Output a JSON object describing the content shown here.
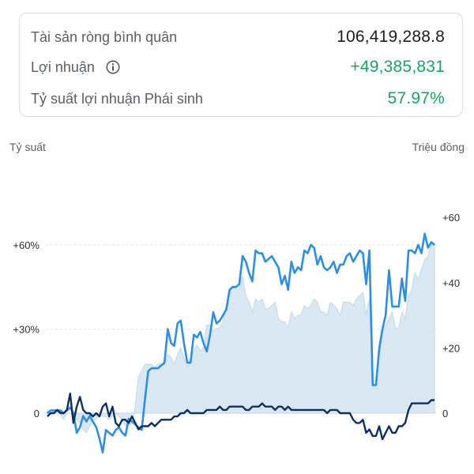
{
  "summary": {
    "row1": {
      "label": "Tài sản ròng bình quân",
      "value": "106,419,288.8"
    },
    "row2": {
      "label": "Lợi nhuận",
      "value": "+49,385,831"
    },
    "row3": {
      "label": "Tỷ suất lợi nhuận Phái sinh",
      "value": "57.97%"
    }
  },
  "colors": {
    "green": "#1aa260",
    "return_line": "#2e8ee3",
    "profit_line": "#0d2f63",
    "area_fill": "#d8e7f3"
  },
  "chart_data": {
    "type": "line",
    "title": "",
    "left_axis_title": "Tỷ suất",
    "right_axis_title": "Triệu đồng",
    "left_ticks": [
      "0",
      "+30%",
      "+60%"
    ],
    "left_tick_values": [
      0,
      30,
      60
    ],
    "right_ticks": [
      "0",
      "+20",
      "+40",
      "+60"
    ],
    "right_tick_values": [
      0,
      20,
      40,
      60
    ],
    "ylim_left": [
      -10,
      75
    ],
    "ylim_right": [
      -14.5,
      73
    ],
    "x_points": 120,
    "series": [
      {
        "axis": "left",
        "style": "line",
        "values": [
          0,
          1,
          1,
          1,
          1,
          0,
          1,
          2,
          0,
          -7,
          -5,
          -1,
          -3,
          -1,
          -3,
          -5,
          -9,
          -14,
          -6,
          -7,
          -8,
          -6,
          -5,
          -7,
          -8,
          -2,
          -3,
          -4,
          -5,
          -6,
          5,
          15,
          16,
          16,
          16,
          17,
          18,
          30,
          25,
          24,
          32,
          33,
          25,
          18,
          18,
          28,
          27,
          29,
          25,
          22,
          28,
          36,
          32,
          33,
          35,
          37,
          44,
          45,
          45,
          46,
          56,
          54,
          50,
          47,
          58,
          57,
          57,
          54,
          55,
          56,
          54,
          52,
          46,
          49,
          44,
          54,
          50,
          52,
          51,
          58,
          57,
          60,
          59,
          53,
          56,
          52,
          51,
          52,
          54,
          50,
          53,
          53,
          56,
          57,
          54,
          56,
          58,
          57,
          46,
          58,
          10,
          10,
          23,
          30,
          35,
          51,
          38,
          38,
          38,
          48,
          40,
          58,
          58,
          57,
          60,
          57,
          64,
          59,
          61,
          60
        ]
      },
      {
        "axis": "right",
        "style": "area",
        "values": [
          1,
          0,
          1,
          1,
          0,
          -2,
          0,
          0,
          -1,
          -2,
          -3,
          -5,
          -6,
          -4,
          -2,
          -2,
          0,
          -1,
          -1,
          -2,
          -1,
          0,
          -1,
          -2,
          -4,
          -4,
          -3,
          2,
          11,
          13,
          15,
          15,
          15,
          14,
          15,
          15,
          15,
          18,
          17,
          15,
          18,
          20,
          17,
          14,
          17,
          19,
          21,
          19,
          20,
          27,
          27,
          25,
          26,
          26,
          28,
          33,
          38,
          39,
          38,
          38,
          42,
          36,
          34,
          31,
          35,
          34,
          35,
          32,
          32,
          33,
          34,
          29,
          28,
          28,
          26,
          31,
          29,
          30,
          30,
          33,
          32,
          33,
          35,
          34,
          31,
          31,
          30,
          34,
          33,
          32,
          30,
          34,
          34,
          34,
          33,
          35,
          36,
          37,
          30,
          35,
          9,
          9,
          17,
          25,
          27,
          29,
          31,
          26,
          26,
          31,
          29,
          36,
          38,
          43,
          41,
          44,
          47,
          48,
          52,
          51
        ]
      },
      {
        "axis": "right",
        "style": "line",
        "values": [
          -1,
          0,
          0,
          1,
          0,
          0,
          1,
          6,
          -3,
          2,
          5,
          1,
          0,
          0,
          -1,
          0,
          -1,
          2,
          3,
          -1,
          2,
          -3,
          -4,
          -2,
          -2,
          -3,
          -1,
          -3,
          -5,
          -4,
          -4,
          -4,
          -3,
          -4,
          -3,
          -2,
          -2,
          -2,
          -2,
          -1,
          -1,
          0,
          0,
          1,
          0,
          0,
          0,
          0,
          0,
          1,
          1,
          1,
          1,
          2,
          1,
          1,
          2,
          2,
          2,
          2,
          2,
          1,
          1,
          2,
          2,
          2,
          3,
          2,
          2,
          2,
          1,
          2,
          2,
          1,
          2,
          1,
          1,
          1,
          1,
          1,
          1,
          1,
          1,
          1,
          1,
          1,
          0,
          1,
          1,
          1,
          0,
          0,
          0,
          0,
          -2,
          -3,
          -3,
          -2,
          -6,
          -5,
          -7,
          -7,
          -4,
          -8,
          -6,
          -4,
          -6,
          -6,
          -4,
          -4,
          -3,
          1,
          3,
          3,
          3,
          3,
          3,
          3,
          4,
          4
        ]
      }
    ]
  }
}
